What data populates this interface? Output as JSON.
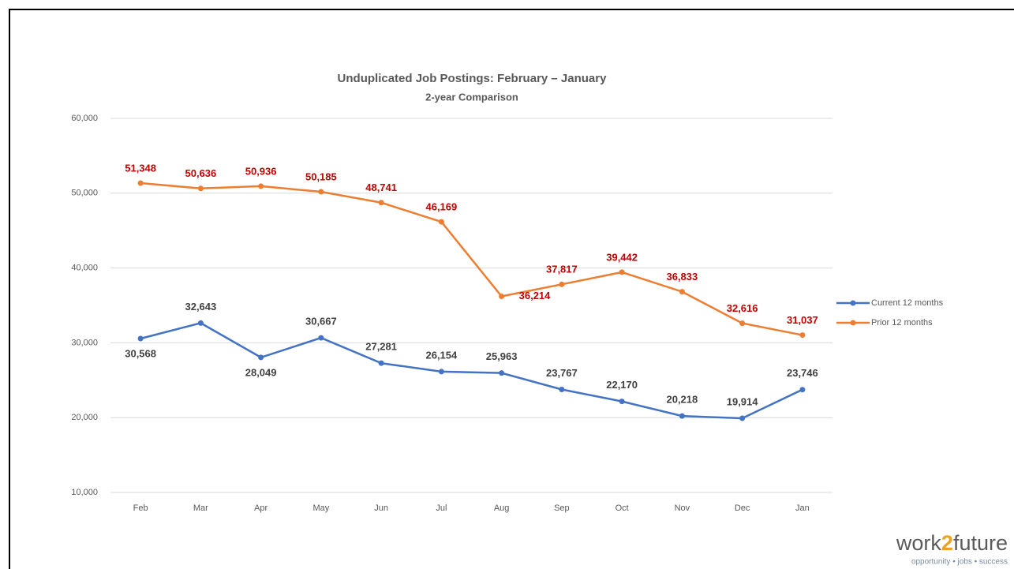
{
  "chart_data": {
    "type": "line",
    "title": "Unduplicated Job Postings: February – January",
    "subtitle": "2-year Comparison",
    "categories": [
      "Feb",
      "Mar",
      "Apr",
      "May",
      "Jun",
      "Jul",
      "Aug",
      "Sep",
      "Oct",
      "Nov",
      "Dec",
      "Jan"
    ],
    "series": [
      {
        "name": "Current 12 months",
        "color": "#4472c4",
        "label_color": "#404040",
        "values": [
          30568,
          32643,
          28049,
          30667,
          27281,
          26154,
          25963,
          23767,
          22170,
          20218,
          19914,
          23746
        ],
        "value_labels": [
          "30,568",
          "32,643",
          "28,049",
          "30,667",
          "27,281",
          "26,154",
          "25,963",
          "23,767",
          "22,170",
          "20,218",
          "19,914",
          "23,746"
        ]
      },
      {
        "name": "Prior 12 months",
        "color": "#ed7d31",
        "label_color": "#c00000",
        "values": [
          51348,
          50636,
          50936,
          50185,
          48741,
          46169,
          36214,
          37817,
          39442,
          36833,
          32616,
          31037
        ],
        "value_labels": [
          "51,348",
          "50,636",
          "50,936",
          "50,185",
          "48,741",
          "46,169",
          "36,214",
          "37,817",
          "39,442",
          "36,833",
          "32,616",
          "31,037"
        ]
      }
    ],
    "ylim": [
      10000,
      60000
    ],
    "yticks": [
      {
        "value": 10000,
        "label": "10,000"
      },
      {
        "value": 20000,
        "label": "20,000"
      },
      {
        "value": 30000,
        "label": "30,000"
      },
      {
        "value": 40000,
        "label": "40,000"
      },
      {
        "value": 50000,
        "label": "50,000"
      },
      {
        "value": 60000,
        "label": "60,000"
      }
    ],
    "grid": true,
    "legend": "right"
  },
  "logo": {
    "parts": [
      "work",
      "2",
      "future"
    ],
    "tagline": "opportunity • jobs • success"
  }
}
